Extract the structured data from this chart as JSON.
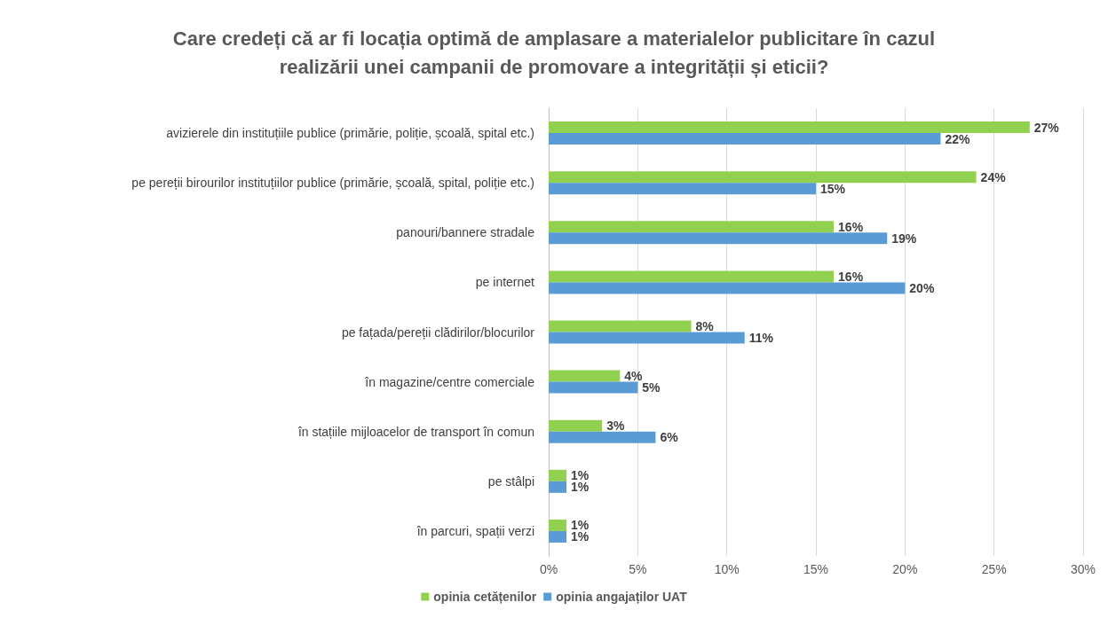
{
  "chart_data": {
    "type": "bar",
    "orientation": "horizontal",
    "title": "Care credeți că ar fi locația optimă de amplasare a materialelor publicitare în cazul\nrealizării unei campanii de promovare a integrității și eticii?",
    "categories": [
      "avizierele din instituțiile publice (primărie, poliție, școală, spital etc.)",
      "pe pereții birourilor instituțiilor publice (primărie, școală, spital, poliție etc.)",
      "panouri/bannere stradale",
      "pe internet",
      "pe fațada/pereții clădirilor/blocurilor",
      "în magazine/centre comerciale",
      "în stațiile mijloacelor de transport în comun",
      "pe stâlpi",
      "în parcuri, spații verzi"
    ],
    "series": [
      {
        "name": "opinia cetățenilor",
        "color": "#92d050",
        "values": [
          27,
          24,
          16,
          16,
          8,
          4,
          3,
          1,
          1
        ],
        "value_labels": [
          "27%",
          "24%",
          "16%",
          "16%",
          "8%",
          "4%",
          "3%",
          "1%",
          "1%"
        ]
      },
      {
        "name": "opinia angajaților UAT",
        "color": "#5b9bd5",
        "values": [
          22,
          15,
          19,
          20,
          11,
          5,
          6,
          1,
          1
        ],
        "value_labels": [
          "22%",
          "15%",
          "19%",
          "20%",
          "11%",
          "5%",
          "6%",
          "1%",
          "1%"
        ]
      }
    ],
    "xlim": [
      0,
      30
    ],
    "xticks": [
      {
        "value": 0,
        "label": "0%"
      },
      {
        "value": 5,
        "label": "5%"
      },
      {
        "value": 10,
        "label": "10%"
      },
      {
        "value": 15,
        "label": "15%"
      },
      {
        "value": 20,
        "label": "20%"
      },
      {
        "value": 25,
        "label": "25%"
      },
      {
        "value": 30,
        "label": "30%"
      }
    ],
    "grid": "x",
    "legend": "bottom"
  }
}
